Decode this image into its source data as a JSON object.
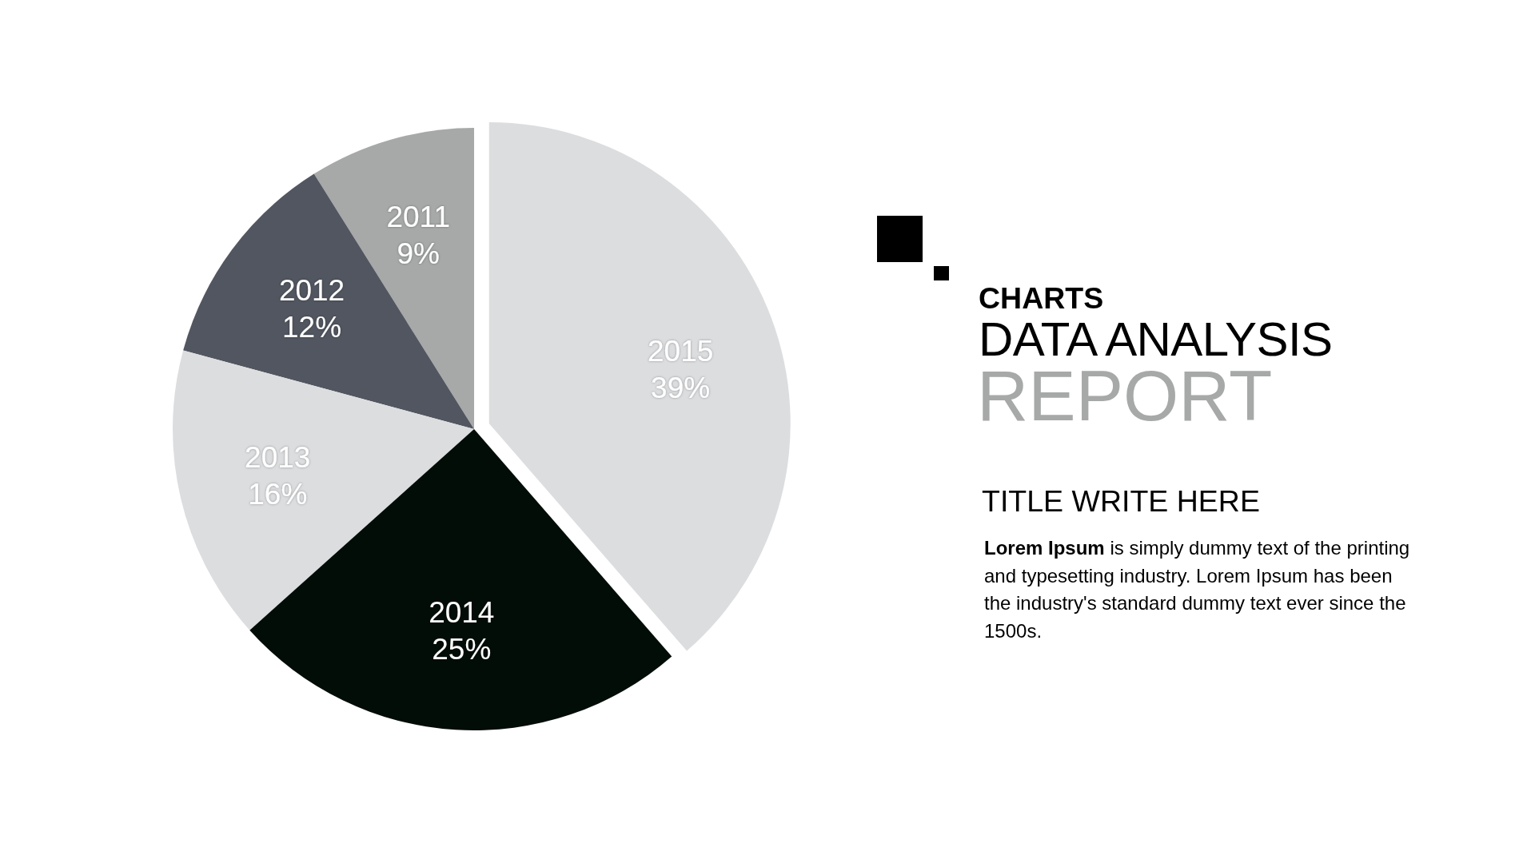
{
  "chart_data": {
    "type": "pie",
    "categories": [
      "2011",
      "2012",
      "2013",
      "2014",
      "2015"
    ],
    "values": [
      9,
      12,
      16,
      25,
      39
    ],
    "value_labels": [
      "9%",
      "12%",
      "16%",
      "25%",
      "39%"
    ],
    "colors": [
      "#a7a8a8",
      "#525660",
      "#dcdddf",
      "#030d08",
      "#dcdddf"
    ],
    "annotations": [
      "CHARTS",
      "DATA ANALYSIS",
      "REPORT",
      "TITLE WRITE HERE",
      "Lorem Ipsum",
      "is simply dummy text of the printing and typesetting industry. Lorem Ipsum has been the industry's standard dummy text ever since the 1500s."
    ]
  }
}
